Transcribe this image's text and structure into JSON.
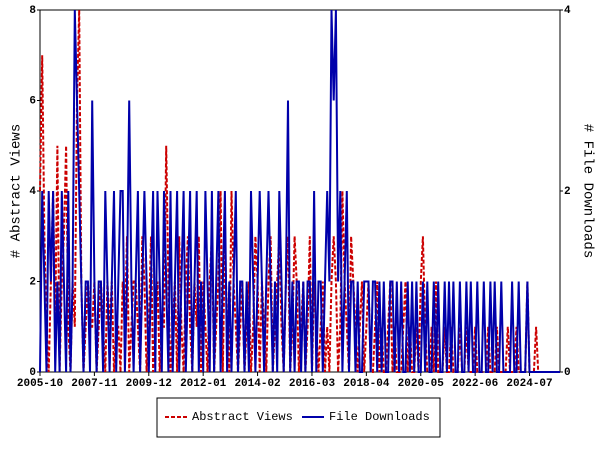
{
  "chart_data": {
    "type": "line",
    "x": [
      "2005-10",
      "2005-11",
      "2005-12",
      "2006-01",
      "2006-02",
      "2006-03",
      "2006-04",
      "2006-05",
      "2006-06",
      "2006-07",
      "2006-08",
      "2006-09",
      "2006-10",
      "2006-11",
      "2006-12",
      "2007-01",
      "2007-02",
      "2007-03",
      "2007-04",
      "2007-05",
      "2007-06",
      "2007-07",
      "2007-08",
      "2007-09",
      "2007-10",
      "2007-11",
      "2007-12",
      "2008-01",
      "2008-02",
      "2008-03",
      "2008-04",
      "2008-05",
      "2008-06",
      "2008-07",
      "2008-08",
      "2008-09",
      "2008-10",
      "2008-11",
      "2008-12",
      "2009-01",
      "2009-02",
      "2009-03",
      "2009-04",
      "2009-05",
      "2009-06",
      "2009-07",
      "2009-08",
      "2009-09",
      "2009-10",
      "2009-11",
      "2009-12",
      "2010-01",
      "2010-02",
      "2010-03",
      "2010-04",
      "2010-05",
      "2010-06",
      "2010-07",
      "2010-08",
      "2010-09",
      "2010-10",
      "2010-11",
      "2010-12",
      "2011-01",
      "2011-02",
      "2011-03",
      "2011-04",
      "2011-05",
      "2011-06",
      "2011-07",
      "2011-08",
      "2011-09",
      "2011-10",
      "2011-11",
      "2011-12",
      "2012-01",
      "2012-02",
      "2012-03",
      "2012-04",
      "2012-05",
      "2012-06",
      "2012-07",
      "2012-08",
      "2012-09",
      "2012-10",
      "2012-11",
      "2012-12",
      "2013-01",
      "2013-02",
      "2013-03",
      "2013-04",
      "2013-05",
      "2013-06",
      "2013-07",
      "2013-08",
      "2013-09",
      "2013-10",
      "2013-11",
      "2013-12",
      "2014-01",
      "2014-02",
      "2014-03",
      "2014-04",
      "2014-05",
      "2014-06",
      "2014-07",
      "2014-08",
      "2014-09",
      "2014-10",
      "2014-11",
      "2014-12",
      "2015-01",
      "2015-02",
      "2015-03",
      "2015-04",
      "2015-05",
      "2015-06",
      "2015-07",
      "2015-08",
      "2015-09",
      "2015-10",
      "2015-11",
      "2015-12",
      "2016-01",
      "2016-02",
      "2016-03",
      "2016-04",
      "2016-05",
      "2016-06",
      "2016-07",
      "2016-08",
      "2016-09",
      "2016-10",
      "2016-11",
      "2016-12",
      "2017-01",
      "2017-02",
      "2017-03",
      "2017-04",
      "2017-05",
      "2017-06",
      "2017-07",
      "2017-08",
      "2017-09",
      "2017-10",
      "2017-11",
      "2017-12",
      "2018-01",
      "2018-02",
      "2018-03",
      "2018-04",
      "2018-05",
      "2018-06",
      "2018-07",
      "2018-08",
      "2018-09",
      "2018-10",
      "2018-11",
      "2018-12",
      "2019-01",
      "2019-02",
      "2019-03",
      "2019-04",
      "2019-05",
      "2019-06",
      "2019-07",
      "2019-08",
      "2019-09",
      "2019-10",
      "2019-11",
      "2019-12",
      "2020-01",
      "2020-02",
      "2020-03",
      "2020-04",
      "2020-05",
      "2020-06",
      "2020-07",
      "2020-08",
      "2020-09",
      "2020-10",
      "2020-11",
      "2020-12",
      "2021-01",
      "2021-02",
      "2021-03",
      "2021-04",
      "2021-05",
      "2021-06",
      "2021-07",
      "2021-08",
      "2021-09",
      "2021-10",
      "2021-11",
      "2021-12",
      "2022-01",
      "2022-02",
      "2022-03",
      "2022-04",
      "2022-05",
      "2022-06",
      "2022-07",
      "2022-08",
      "2022-09",
      "2022-10",
      "2022-11",
      "2022-12",
      "2023-01",
      "2023-02",
      "2023-03",
      "2023-04",
      "2023-05",
      "2023-06",
      "2023-07",
      "2023-08",
      "2023-09",
      "2023-10",
      "2023-11",
      "2023-12",
      "2024-01",
      "2024-02",
      "2024-03",
      "2024-04",
      "2024-05",
      "2024-06",
      "2024-07",
      "2024-08",
      "2024-09",
      "2024-10",
      "2024-11",
      "2024-12",
      "2025-01",
      "2025-02",
      "2025-03",
      "2025-04",
      "2025-05",
      "2025-06",
      "2025-07",
      "2025-08",
      "2025-09"
    ],
    "xticks": [
      "2005-10",
      "2007-11",
      "2009-12",
      "2012-01",
      "2014-02",
      "2016-03",
      "2018-04",
      "2020-05",
      "2022-06",
      "2024-07"
    ],
    "ylabel": "# Abstract Views",
    "y2label": "# File Downloads",
    "ylim": [
      0,
      8
    ],
    "yticks": [
      0,
      2,
      4,
      6,
      8
    ],
    "y2lim": [
      0,
      4
    ],
    "y2ticks": [
      0,
      2,
      4
    ],
    "legend": "bottom",
    "series": [
      {
        "name": "Abstract Views",
        "color": "#cc0000",
        "dash": true,
        "values": [
          4,
          7,
          3,
          1,
          0,
          2,
          4,
          1,
          5,
          0,
          2,
          3,
          5,
          1,
          0,
          2,
          1,
          6,
          8,
          2,
          0,
          1,
          2,
          1,
          1,
          2,
          0,
          1,
          2,
          1,
          0,
          2,
          1,
          2,
          0,
          1,
          1,
          0,
          2,
          1,
          3,
          0,
          1,
          2,
          2,
          1,
          0,
          3,
          2,
          0,
          1,
          3,
          0,
          1,
          2,
          0,
          1,
          1,
          5,
          2,
          0,
          1,
          2,
          0,
          3,
          1,
          0,
          2,
          3,
          1,
          0,
          2,
          1,
          3,
          0,
          2,
          1,
          0,
          2,
          3,
          0,
          1,
          2,
          4,
          0,
          3,
          1,
          0,
          4,
          2,
          1,
          0,
          1,
          2,
          0,
          1,
          2,
          0,
          1,
          3,
          2,
          0,
          2,
          1,
          0,
          2,
          3,
          0,
          1,
          2,
          3,
          1,
          0,
          2,
          3,
          0,
          1,
          3,
          2,
          0,
          1,
          2,
          0,
          1,
          3,
          0,
          2,
          1,
          0,
          1,
          2,
          0,
          1,
          0,
          2,
          3,
          2,
          0,
          1,
          4,
          2,
          1,
          0,
          3,
          2,
          1,
          0,
          1,
          2,
          0,
          1,
          2,
          0,
          0,
          1,
          2,
          0,
          1,
          0,
          0,
          1,
          2,
          0,
          1,
          0,
          0,
          0,
          1,
          2,
          0,
          1,
          0,
          0,
          1,
          0,
          2,
          3,
          1,
          0,
          0,
          1,
          0,
          2,
          0,
          0,
          0,
          1,
          0,
          0,
          1,
          0,
          0,
          0,
          1,
          0,
          0,
          1,
          0,
          0,
          0,
          1,
          0,
          0,
          0,
          0,
          0,
          1,
          0,
          0,
          0,
          1,
          0,
          0,
          0,
          0,
          1,
          0,
          0,
          0,
          1,
          0,
          0,
          0,
          0,
          2,
          0,
          0,
          0,
          1,
          0,
          0,
          0,
          0,
          0,
          0,
          0,
          0,
          0,
          0,
          0
        ]
      },
      {
        "name": "File Downloads",
        "color": "#0000aa",
        "axis": "y2",
        "values": [
          0,
          2,
          1,
          0,
          2,
          1,
          2,
          0,
          1,
          0,
          2,
          1,
          0,
          2,
          0,
          1,
          4,
          3,
          2,
          1,
          0,
          1,
          1,
          0,
          3,
          1,
          0,
          1,
          1,
          0,
          2,
          1,
          0,
          1,
          2,
          0,
          1,
          2,
          2,
          0,
          1,
          3,
          1,
          0,
          1,
          2,
          0,
          1,
          2,
          1,
          0,
          1,
          2,
          0,
          2,
          1,
          0,
          2,
          1,
          0,
          2,
          0,
          1,
          2,
          0,
          1,
          2,
          0,
          1,
          2,
          0,
          1,
          2,
          0,
          1,
          0,
          2,
          1,
          0,
          2,
          0,
          1,
          2,
          0,
          1,
          2,
          0,
          1,
          0,
          1,
          2,
          0,
          1,
          1,
          0,
          1,
          0,
          2,
          1,
          0,
          1,
          2,
          1,
          0,
          1,
          2,
          1,
          0,
          1,
          0,
          2,
          1,
          0,
          1,
          3,
          0,
          1,
          0,
          1,
          1,
          0,
          1,
          0,
          1,
          1,
          0,
          2,
          0,
          1,
          1,
          0,
          1,
          2,
          1,
          4,
          3,
          4,
          1,
          2,
          0,
          1,
          2,
          0,
          1,
          1,
          0,
          1,
          0,
          0,
          1,
          1,
          1,
          0,
          1,
          1,
          0,
          1,
          0,
          1,
          0,
          0,
          1,
          1,
          0,
          1,
          0,
          1,
          0,
          0,
          1,
          0,
          1,
          0,
          1,
          0,
          0,
          1,
          0,
          1,
          0,
          0,
          1,
          0,
          1,
          0,
          0,
          1,
          0,
          1,
          0,
          1,
          0,
          0,
          1,
          0,
          0,
          1,
          0,
          1,
          0,
          0,
          1,
          0,
          0,
          1,
          0,
          0,
          1,
          0,
          1,
          0,
          0,
          1,
          0,
          0,
          0,
          0,
          1,
          0,
          0,
          1,
          0,
          0,
          0,
          1,
          0,
          0,
          0,
          0,
          0,
          0,
          0,
          0,
          0,
          0,
          0,
          0,
          0,
          0,
          0
        ]
      }
    ]
  }
}
